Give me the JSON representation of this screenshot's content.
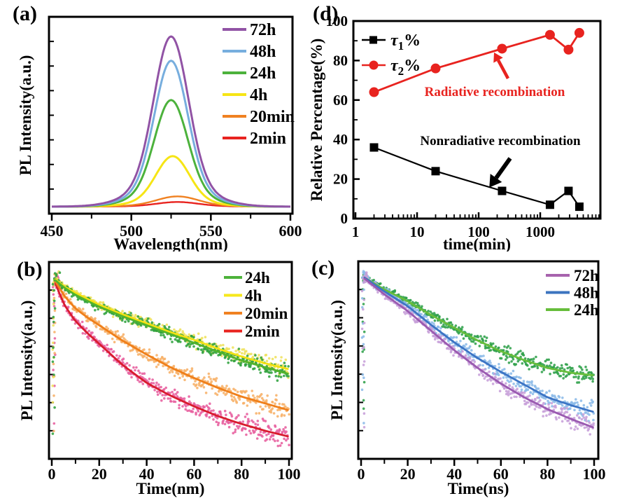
{
  "figure": {
    "background": "#ffffff",
    "panels": [
      {
        "id": "a",
        "label": "(a)"
      },
      {
        "id": "d",
        "label": "(d)"
      },
      {
        "id": "b",
        "label": "(b)"
      },
      {
        "id": "c",
        "label": "(c)"
      }
    ]
  },
  "chart_data": [
    {
      "panel": "a",
      "type": "line",
      "description": "PL emission spectra at increasing times",
      "xlabel": "Wavelength(nm)",
      "ylabel": "PL Intensity(a.u.)",
      "xlim": [
        450,
        600
      ],
      "xticks": [
        450,
        500,
        550,
        600
      ],
      "xminorticks": [
        475,
        525,
        575
      ],
      "legend_position": "top-right",
      "series": [
        {
          "label": "2min",
          "color": "#e8231f",
          "peak_nm": 529,
          "rel_peak_intensity": 0.025,
          "fwhm_nm": 30
        },
        {
          "label": "20min",
          "color": "#f08121",
          "peak_nm": 529,
          "rel_peak_intensity": 0.055,
          "fwhm_nm": 30
        },
        {
          "label": "4h",
          "color": "#f6e515",
          "peak_nm": 526,
          "rel_peak_intensity": 0.27,
          "fwhm_nm": 24
        },
        {
          "label": "24h",
          "color": "#4cb23c",
          "peak_nm": 525,
          "rel_peak_intensity": 0.57,
          "fwhm_nm": 24
        },
        {
          "label": "48h",
          "color": "#77aede",
          "peak_nm": 525,
          "rel_peak_intensity": 0.78,
          "fwhm_nm": 24
        },
        {
          "label": "72h",
          "color": "#9153a5",
          "peak_nm": 525,
          "rel_peak_intensity": 0.91,
          "fwhm_nm": 25
        }
      ]
    },
    {
      "panel": "d",
      "type": "scatter-line",
      "description": "Relative percentage of decay components vs time",
      "xlabel": "time(min)",
      "ylabel": "Relative Percentage(%)",
      "xscale": "log",
      "xlim": [
        1,
        9000
      ],
      "xticks": [
        1,
        10,
        100,
        1000
      ],
      "ylim": [
        0,
        100
      ],
      "yticks": [
        0,
        20,
        40,
        60,
        80,
        100
      ],
      "x": [
        2,
        20,
        240,
        1440,
        2880,
        4320
      ],
      "series": [
        {
          "name": "tau1",
          "legend": {
            "symbol": "τ",
            "sub": "1",
            "suffix": "%"
          },
          "marker": "square",
          "color": "#000000",
          "values": [
            36,
            24,
            14,
            7,
            14,
            6
          ]
        },
        {
          "name": "tau2",
          "legend": {
            "symbol": "τ",
            "sub": "2",
            "suffix": "%"
          },
          "marker": "circle",
          "color": "#e8231f",
          "values": [
            64,
            76,
            86,
            93,
            85.5,
            94
          ]
        }
      ],
      "annotations": [
        {
          "id": "radiative",
          "text": "Radiative recombination",
          "color": "#e8231f"
        },
        {
          "id": "nonradiative",
          "text": "Nonradiative recombination",
          "color": "#000000"
        }
      ]
    },
    {
      "panel": "b",
      "type": "decay-scatter",
      "description": "Time-resolved PL decay traces with fits",
      "xlabel": "Time(nm)",
      "ylabel": "PL Intensity(a.u.)",
      "xlim": [
        0,
        100
      ],
      "xticks": [
        0,
        20,
        40,
        60,
        80,
        100
      ],
      "legend_position": "top-right",
      "series": [
        {
          "label": "2min",
          "legend_color": "#e8231f",
          "line_color": "#d81c2e",
          "scatter_color": "#e75e9e",
          "noise": 1.25,
          "seed": 11,
          "fit_curve_xy_fraction": [
            [
              1.5,
              0.105
            ],
            [
              5,
              0.21
            ],
            [
              10,
              0.3
            ],
            [
              15,
              0.36
            ],
            [
              20,
              0.415
            ],
            [
              30,
              0.525
            ],
            [
              40,
              0.615
            ],
            [
              50,
              0.68
            ],
            [
              60,
              0.735
            ],
            [
              70,
              0.785
            ],
            [
              80,
              0.825
            ],
            [
              90,
              0.86
            ],
            [
              100,
              0.89
            ]
          ]
        },
        {
          "label": "20min",
          "legend_color": "#f08121",
          "line_color": "#ef7f1a",
          "scatter_color": "#f7b168",
          "noise": 1.1,
          "seed": 22,
          "fit_curve_xy_fraction": [
            [
              1.5,
              0.095
            ],
            [
              5,
              0.165
            ],
            [
              10,
              0.235
            ],
            [
              15,
              0.28
            ],
            [
              20,
              0.32
            ],
            [
              30,
              0.4
            ],
            [
              40,
              0.47
            ],
            [
              50,
              0.535
            ],
            [
              60,
              0.59
            ],
            [
              70,
              0.64
            ],
            [
              80,
              0.685
            ],
            [
              90,
              0.72
            ],
            [
              100,
              0.755
            ]
          ]
        },
        {
          "label": "4h",
          "legend_color": "#f6e81c",
          "line_color": "#f3e112",
          "scatter_color": "#efe15c",
          "noise": 1.0,
          "seed": 33,
          "fit_curve_xy_fraction": [
            [
              1.5,
              0.085
            ],
            [
              5,
              0.12
            ],
            [
              10,
              0.155
            ],
            [
              20,
              0.215
            ],
            [
              30,
              0.265
            ],
            [
              40,
              0.31
            ],
            [
              50,
              0.355
            ],
            [
              60,
              0.395
            ],
            [
              70,
              0.44
            ],
            [
              80,
              0.48
            ],
            [
              90,
              0.515
            ],
            [
              100,
              0.545
            ]
          ]
        },
        {
          "label": "24h",
          "legend_color": "#4db23a",
          "line_color": "#52b32c",
          "scatter_color": "#2fa23e",
          "noise": 1.0,
          "seed": 44,
          "fit_curve_xy_fraction": [
            [
              1.5,
              0.09
            ],
            [
              5,
              0.125
            ],
            [
              10,
              0.165
            ],
            [
              20,
              0.225
            ],
            [
              30,
              0.275
            ],
            [
              40,
              0.32
            ],
            [
              50,
              0.365
            ],
            [
              60,
              0.41
            ],
            [
              70,
              0.455
            ],
            [
              80,
              0.5
            ],
            [
              90,
              0.535
            ],
            [
              100,
              0.57
            ]
          ]
        }
      ]
    },
    {
      "panel": "c",
      "type": "decay-scatter",
      "description": "Time-resolved PL decay traces with fits",
      "xlabel": "Time(ns)",
      "ylabel": "PL Intensity(a.u.)",
      "xlim": [
        0,
        100
      ],
      "xticks": [
        0,
        20,
        40,
        60,
        80,
        100
      ],
      "legend_position": "top-right",
      "series": [
        {
          "label": "24h",
          "legend_color": "#67bd3b",
          "line_color": "#67bd3b",
          "scatter_color": "#2fa04a",
          "noise": 0.95,
          "seed": 55,
          "fit_curve_xy_fraction": [
            [
              1.5,
              0.08
            ],
            [
              10,
              0.14
            ],
            [
              20,
              0.2
            ],
            [
              30,
              0.27
            ],
            [
              40,
              0.335
            ],
            [
              50,
              0.4
            ],
            [
              60,
              0.455
            ],
            [
              70,
              0.5
            ],
            [
              80,
              0.54
            ],
            [
              90,
              0.565
            ],
            [
              100,
              0.578
            ]
          ]
        },
        {
          "label": "48h",
          "legend_color": "#3c74bf",
          "line_color": "#3c74c4",
          "scatter_color": "#8cbbe8",
          "noise": 1.0,
          "seed": 66,
          "fit_curve_xy_fraction": [
            [
              1.5,
              0.08
            ],
            [
              10,
              0.15
            ],
            [
              20,
              0.225
            ],
            [
              30,
              0.32
            ],
            [
              40,
              0.41
            ],
            [
              50,
              0.49
            ],
            [
              60,
              0.56
            ],
            [
              70,
              0.625
            ],
            [
              80,
              0.69
            ],
            [
              90,
              0.73
            ],
            [
              100,
              0.765
            ]
          ]
        },
        {
          "label": "72h",
          "legend_color": "#a763ad",
          "line_color": "#9a5ab0",
          "scatter_color": "#c79fd9",
          "noise": 1.0,
          "seed": 77,
          "fit_curve_xy_fraction": [
            [
              1.5,
              0.085
            ],
            [
              10,
              0.165
            ],
            [
              20,
              0.25
            ],
            [
              30,
              0.35
            ],
            [
              40,
              0.45
            ],
            [
              50,
              0.54
            ],
            [
              60,
              0.62
            ],
            [
              70,
              0.69
            ],
            [
              80,
              0.75
            ],
            [
              90,
              0.8
            ],
            [
              100,
              0.845
            ]
          ]
        }
      ]
    }
  ]
}
